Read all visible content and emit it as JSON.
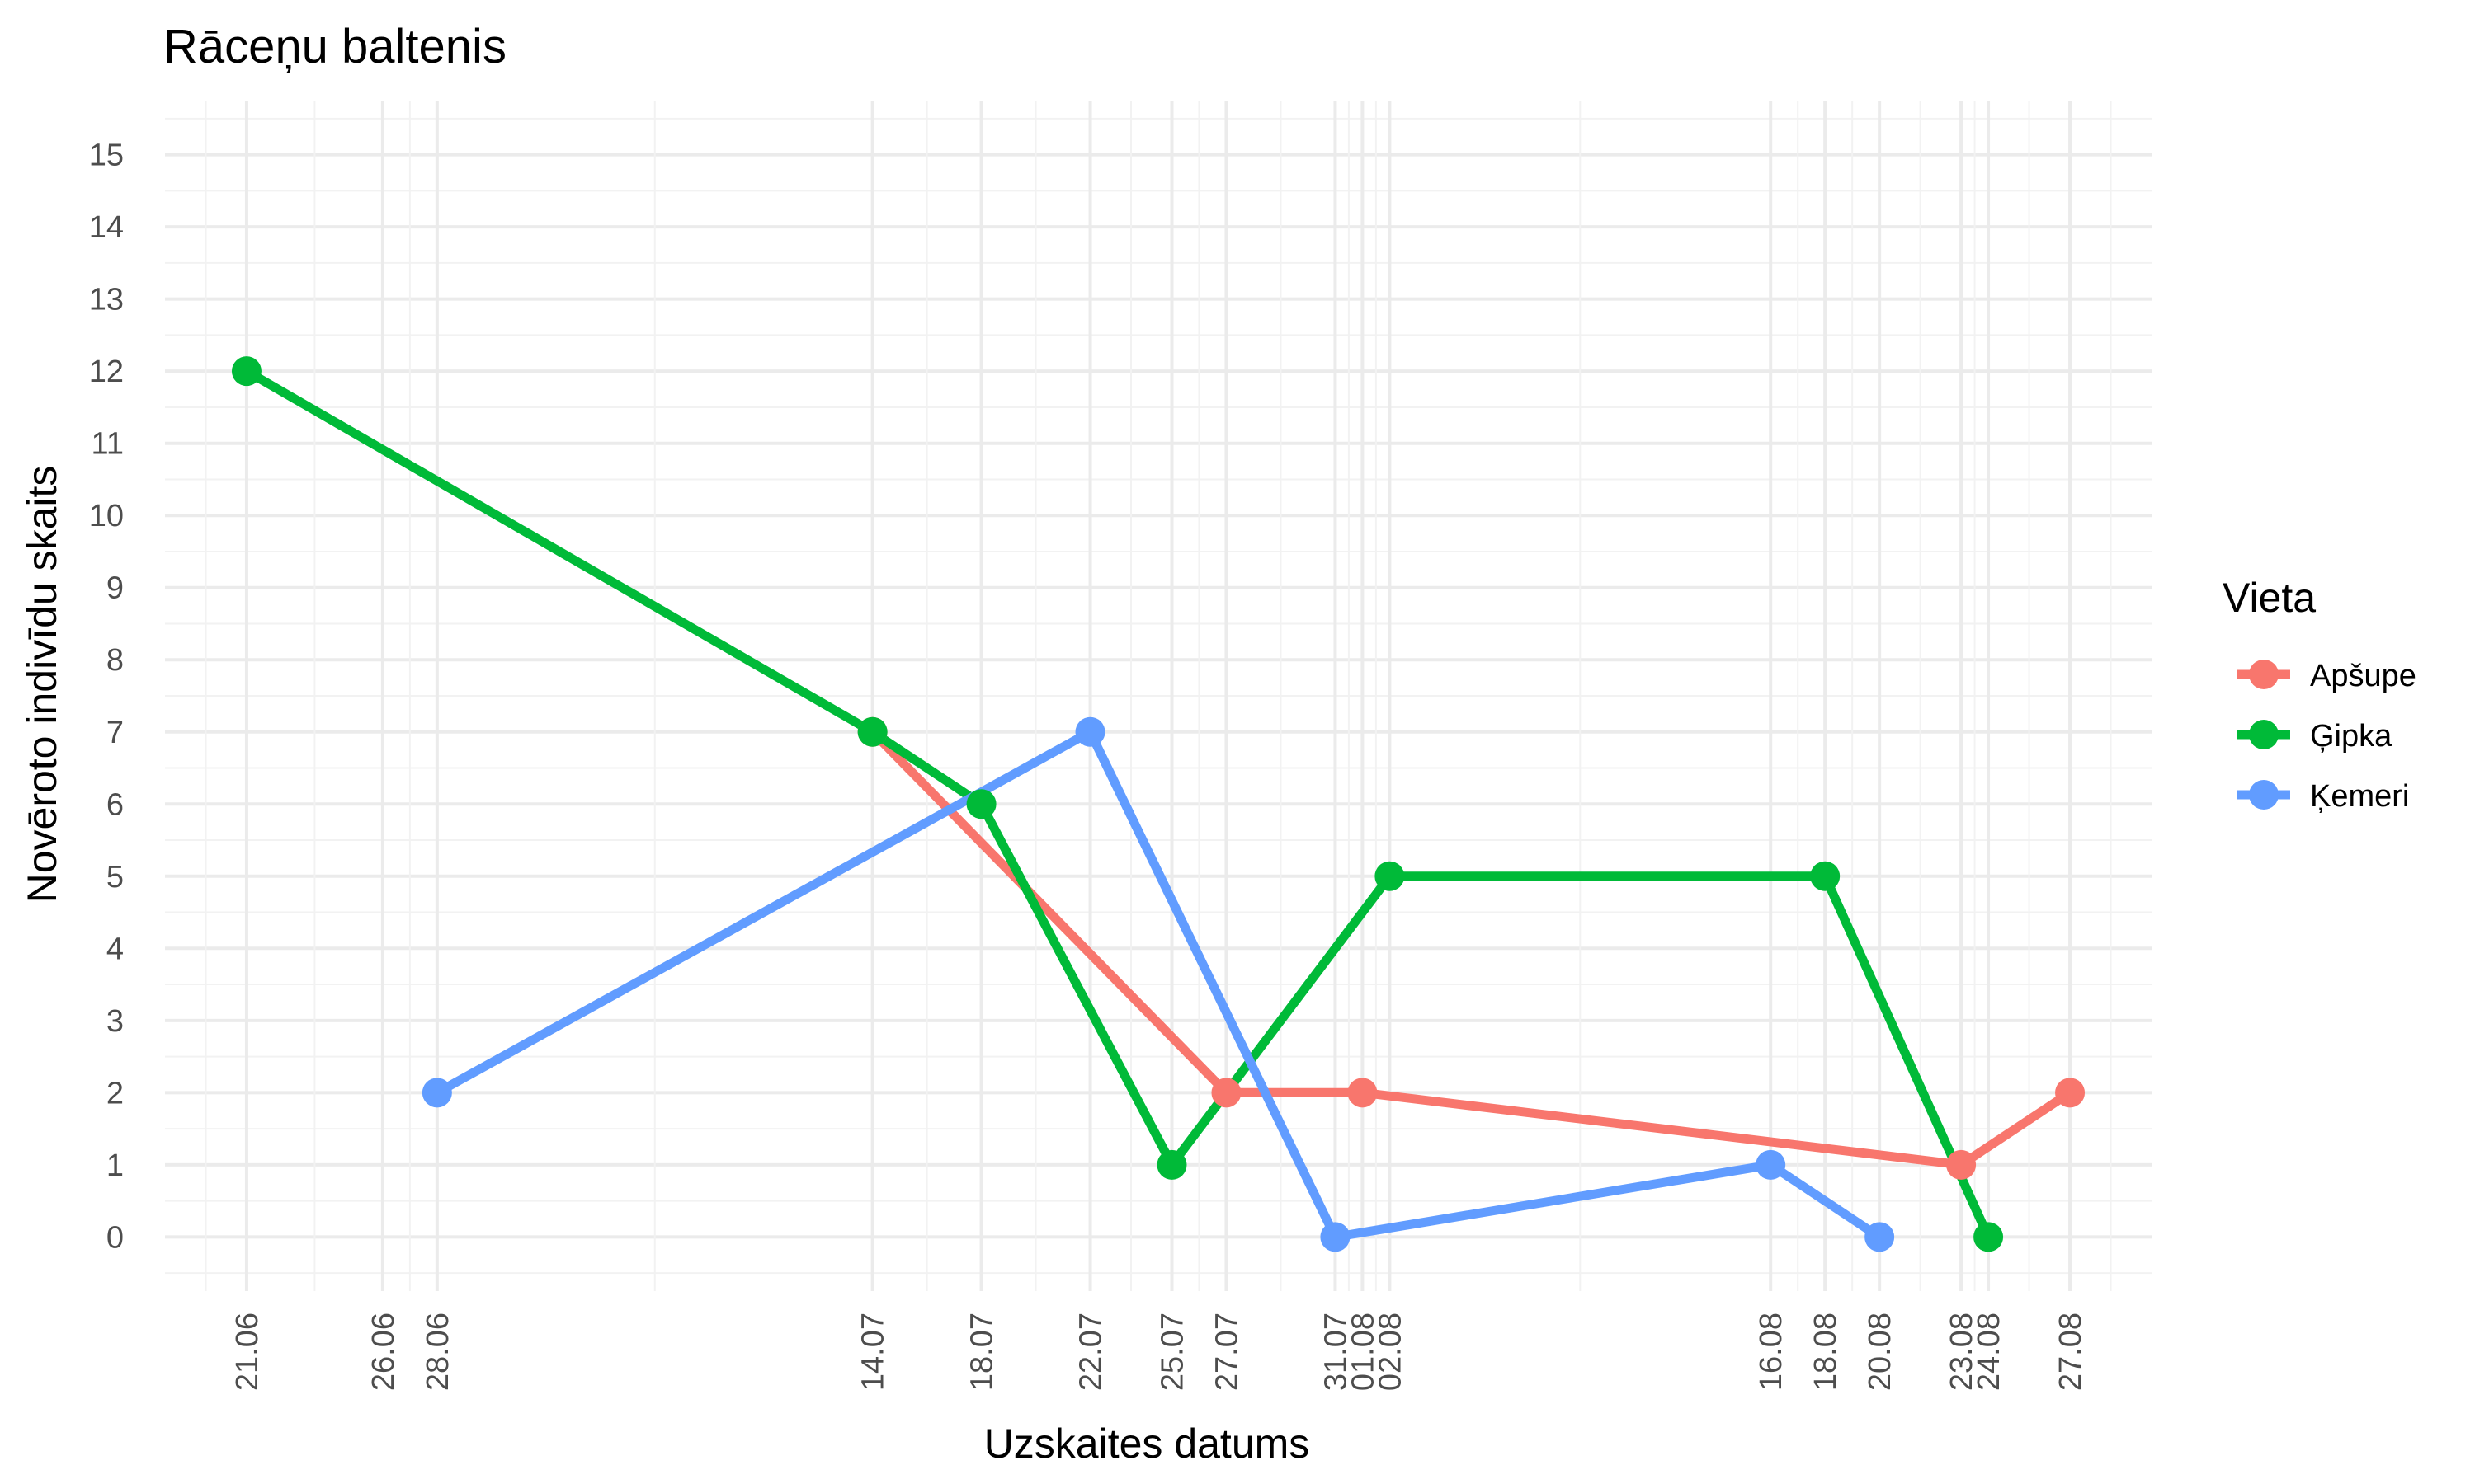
{
  "chart_data": {
    "type": "line",
    "title": "Rāceņu baltenis",
    "xlabel": "Uzskaites datums",
    "ylabel": "Novēroto indivīdu skaits",
    "x_ticks": [
      "21.06",
      "26.06",
      "28.06",
      "14.07",
      "18.07",
      "22.07",
      "25.07",
      "27.07",
      "31.07",
      "01.08",
      "02.08",
      "16.08",
      "18.08",
      "20.08",
      "23.08",
      "24.08",
      "27.08"
    ],
    "y_ticks": [
      0,
      1,
      2,
      3,
      4,
      5,
      6,
      7,
      8,
      9,
      10,
      11,
      12,
      13,
      14,
      15
    ],
    "ylim": [
      -0.75,
      15.75
    ],
    "xlim": [
      "2021-06-18",
      "2021-08-30"
    ],
    "grid": true,
    "legend": {
      "title": "Vieta",
      "position": "right"
    },
    "series": [
      {
        "name": "Apšupe",
        "color": "#F8766D",
        "points": [
          {
            "x": "2021-07-14",
            "y": 7
          },
          {
            "x": "2021-07-27",
            "y": 2
          },
          {
            "x": "2021-08-01",
            "y": 2
          },
          {
            "x": "2021-08-23",
            "y": 1
          },
          {
            "x": "2021-08-27",
            "y": 2
          }
        ]
      },
      {
        "name": "Ģipka",
        "color": "#00BA38",
        "points": [
          {
            "x": "2021-06-21",
            "y": 12
          },
          {
            "x": "2021-07-14",
            "y": 7
          },
          {
            "x": "2021-07-18",
            "y": 6
          },
          {
            "x": "2021-07-25",
            "y": 1
          },
          {
            "x": "2021-08-02",
            "y": 5
          },
          {
            "x": "2021-08-18",
            "y": 5
          },
          {
            "x": "2021-08-24",
            "y": 0
          }
        ]
      },
      {
        "name": "Ķemeri",
        "color": "#619CFF",
        "points": [
          {
            "x": "2021-06-28",
            "y": 2
          },
          {
            "x": "2021-07-22",
            "y": 7
          },
          {
            "x": "2021-07-31",
            "y": 0
          },
          {
            "x": "2021-08-16",
            "y": 1
          },
          {
            "x": "2021-08-20",
            "y": 0
          }
        ]
      }
    ]
  }
}
